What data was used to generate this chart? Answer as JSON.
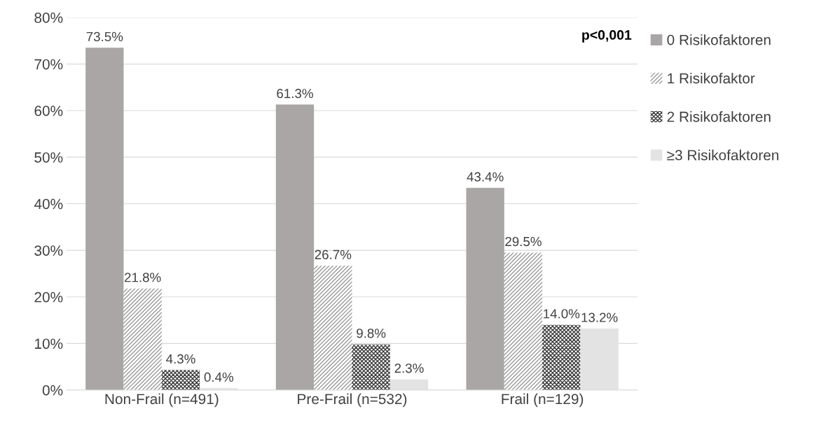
{
  "chart_data": {
    "type": "bar",
    "categories": [
      "Non-Frail (n=491)",
      "Pre-Frail (n=532)",
      "Frail (n=129)"
    ],
    "series": [
      {
        "name": "0 Risikofaktoren",
        "color": "#aaa6a6",
        "values": [
          73.5,
          61.3,
          43.4
        ],
        "value_labels": [
          "73.5%",
          "61.3%",
          "43.4%"
        ]
      },
      {
        "name": "1 Risikofaktor",
        "color": "#9a9a9a",
        "values": [
          21.8,
          26.7,
          29.5
        ],
        "value_labels": [
          "21.8%",
          "26.7%",
          "29.5%"
        ]
      },
      {
        "name": "2 Risikofaktoren",
        "color": "#3a3a3a",
        "values": [
          4.3,
          9.8,
          14.0
        ],
        "value_labels": [
          "4.3%",
          "9.8%",
          "14.0%"
        ]
      },
      {
        "name": "≥3 Risikofaktoren",
        "color": "#e3e3e3",
        "values": [
          0.4,
          2.3,
          13.2
        ],
        "value_labels": [
          "0.4%",
          "2.3%",
          "13.2%"
        ]
      }
    ],
    "ylim": [
      0,
      80
    ],
    "yticks": [
      {
        "value": 0,
        "label": "0%"
      },
      {
        "value": 10,
        "label": "10%"
      },
      {
        "value": 20,
        "label": "20%"
      },
      {
        "value": 30,
        "label": "30%"
      },
      {
        "value": 40,
        "label": "40%"
      },
      {
        "value": 50,
        "label": "50%"
      },
      {
        "value": 60,
        "label": "60%"
      },
      {
        "value": 70,
        "label": "70%"
      },
      {
        "value": 80,
        "label": "80%"
      }
    ],
    "grid": "y",
    "legend": "right",
    "annotations": [
      "p<0,001"
    ]
  }
}
